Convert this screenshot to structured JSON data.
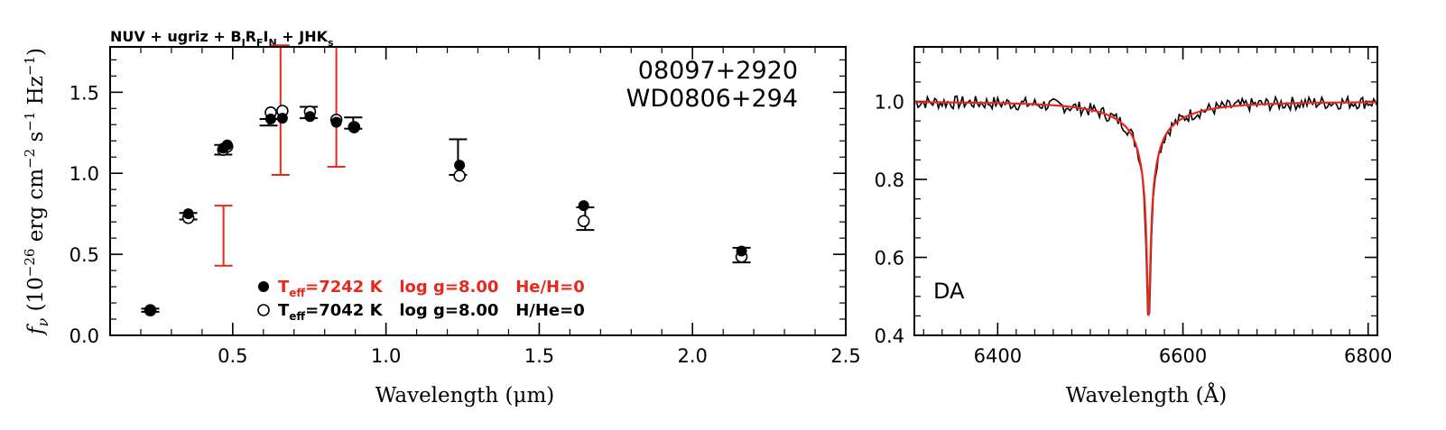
{
  "chart_data": [
    {
      "type": "scatter",
      "title": "NUV + ugriz + BJRFIN + JHKs",
      "title_parts": {
        "a": "NUV + ugriz + B",
        "b": "J",
        "c": "R",
        "d": "F",
        "e": "I",
        "f": "N",
        "g": " + JHK",
        "h": "s"
      },
      "object_ids": [
        "08097+2920",
        "WD0806+294"
      ],
      "xlabel": "Wavelength (μm)",
      "ylabel": "f",
      "ylabel_parts": {
        "nu": "ν",
        "open": " (10",
        "exp26": "−26",
        "erg": " erg cm",
        "exp2": "−2",
        "s": " s",
        "exp1a": "−1",
        "hz": " Hz",
        "exp1b": "−1",
        "close": ")"
      },
      "xlim": [
        0.1,
        2.5
      ],
      "ylim": [
        0.0,
        1.78
      ],
      "x_ticks": [
        "0.5",
        "1.0",
        "1.5",
        "2.0",
        "2.5"
      ],
      "y_ticks": [
        "0.0",
        "0.5",
        "1.0",
        "1.5"
      ],
      "observed": [
        {
          "x": 0.231,
          "y": 0.155,
          "err": 0.01,
          "color": "#000000"
        },
        {
          "x": 0.355,
          "y": 0.735,
          "err": 0.02,
          "color": "#000000"
        },
        {
          "x": 0.469,
          "y": 1.145,
          "err": 0.03,
          "color": "#000000"
        },
        {
          "x": 0.617,
          "y": 1.315,
          "err": 0.02,
          "color": "#000000"
        },
        {
          "x": 0.748,
          "y": 1.375,
          "err": 0.035,
          "color": "#000000"
        },
        {
          "x": 0.893,
          "y": 1.31,
          "err": 0.035,
          "color": "#000000"
        },
        {
          "x": 1.235,
          "y": 1.1,
          "err": 0.11,
          "color": "#000000"
        },
        {
          "x": 1.65,
          "y": 0.72,
          "err": 0.07,
          "color": "#000000"
        },
        {
          "x": 2.16,
          "y": 0.495,
          "err": 0.045,
          "color": "#000000"
        },
        {
          "x": 0.47,
          "y": 0.615,
          "err": 0.185,
          "color": "#e8281e"
        },
        {
          "x": 0.656,
          "y": 1.39,
          "err": 0.4,
          "color": "#e8281e"
        },
        {
          "x": 0.838,
          "y": 1.41,
          "err": 0.37,
          "color": "#e8281e"
        }
      ],
      "series": [
        {
          "name": "Teff=7242 K  log g=8.00  He/H=0",
          "marker": "filled",
          "color": "#e8281e",
          "x": [
            0.231,
            0.355,
            0.469,
            0.482,
            0.624,
            0.662,
            0.752,
            0.838,
            0.896,
            1.24,
            1.645,
            2.16
          ],
          "y": [
            0.155,
            0.75,
            1.155,
            1.175,
            1.335,
            1.34,
            1.35,
            1.315,
            1.28,
            1.05,
            0.8,
            0.52
          ]
        },
        {
          "name": "Teff=7042 K  log g=8.00  H/He=0",
          "marker": "open",
          "color": "#000000",
          "x": [
            0.231,
            0.355,
            0.469,
            0.482,
            0.624,
            0.662,
            0.752,
            0.838,
            0.896,
            1.24,
            1.645,
            2.16
          ],
          "y": [
            0.155,
            0.725,
            1.145,
            1.165,
            1.375,
            1.385,
            1.38,
            1.33,
            1.285,
            0.985,
            0.705,
            0.485
          ]
        }
      ],
      "legend_parts": [
        {
          "t": "T",
          "sub": "eff",
          "rest": "=7242 K   log g=8.00   He/H=0"
        },
        {
          "t": "T",
          "sub": "eff",
          "rest": "=7042 K   log g=8.00   H/He=0"
        }
      ],
      "legend_position": "bottom-center"
    },
    {
      "type": "line",
      "label": "DA",
      "xlabel": "Wavelength (Å)",
      "xlim": [
        6310,
        6810
      ],
      "ylim": [
        0.4,
        1.14
      ],
      "x_ticks": [
        "6400",
        "6600",
        "6800"
      ],
      "y_ticks": [
        "0.4",
        "0.6",
        "0.8",
        "1.0"
      ],
      "line_center": 6563,
      "line_depth": 0.5,
      "series": [
        {
          "role": "observed",
          "color": "#000000"
        },
        {
          "role": "model",
          "color": "#e8281e"
        }
      ]
    }
  ]
}
